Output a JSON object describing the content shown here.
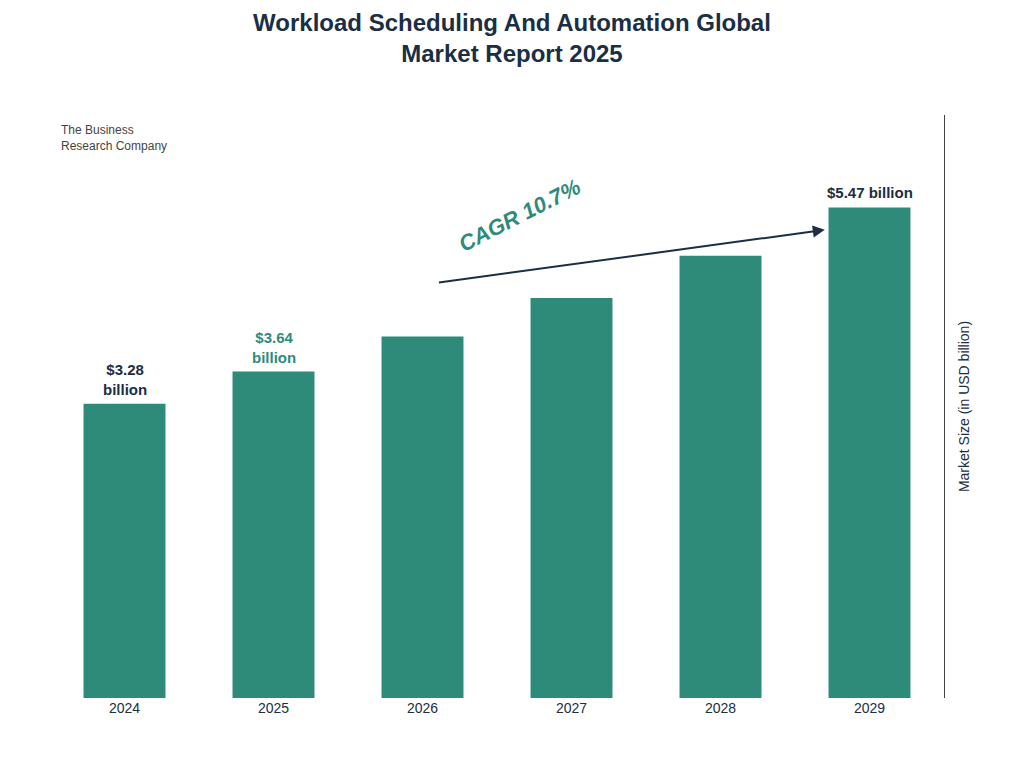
{
  "chart_data": {
    "type": "bar",
    "title": "Workload Scheduling And Automation Global\nMarket Report 2025",
    "categories": [
      "2024",
      "2025",
      "2026",
      "2027",
      "2028",
      "2029"
    ],
    "values": [
      3.28,
      3.64,
      4.03,
      4.46,
      4.93,
      5.47
    ],
    "color": "#2e8b7a",
    "y_label": "Market Size (in USD billion)",
    "ylim": [
      0,
      6.5
    ],
    "grid": false,
    "tick_labels": "x",
    "annotations": [
      {
        "text": "$3.28\nbillion",
        "category": "2024",
        "color": "#1a2e44"
      },
      {
        "text": "$3.64\nbillion",
        "category": "2025",
        "color": "#2e8b7a"
      },
      {
        "text": "$5.47 billion",
        "category": "2029",
        "color": "#1a2e44"
      },
      {
        "text": "CAGR 10.7%",
        "arrow_from": "2026",
        "arrow_to": "2029",
        "color": "#2e8b7a",
        "arrow_color": "#1a2e44"
      },
      {
        "text": "The Business\nResearch Company"
      }
    ]
  }
}
